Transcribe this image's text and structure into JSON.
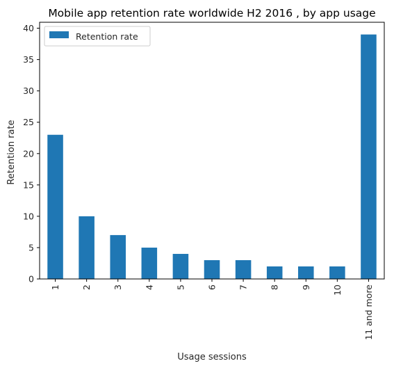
{
  "chart_data": {
    "type": "bar",
    "title": "Mobile app retention rate worldwide H2 2016 , by app usage",
    "xlabel": "Usage sessions",
    "ylabel": "Retention rate",
    "categories": [
      "1",
      "2",
      "3",
      "4",
      "5",
      "6",
      "7",
      "8",
      "9",
      "10",
      "11 and more"
    ],
    "series": [
      {
        "name": "Retention rate",
        "values": [
          23,
          10,
          7,
          5,
          4,
          3,
          3,
          2,
          2,
          2,
          39
        ],
        "color": "#1f77b4"
      }
    ],
    "ylim": [
      0,
      40.95
    ],
    "yticks": [
      0,
      5,
      10,
      15,
      20,
      25,
      30,
      35,
      40
    ],
    "legend": "top-left",
    "grid": false
  }
}
